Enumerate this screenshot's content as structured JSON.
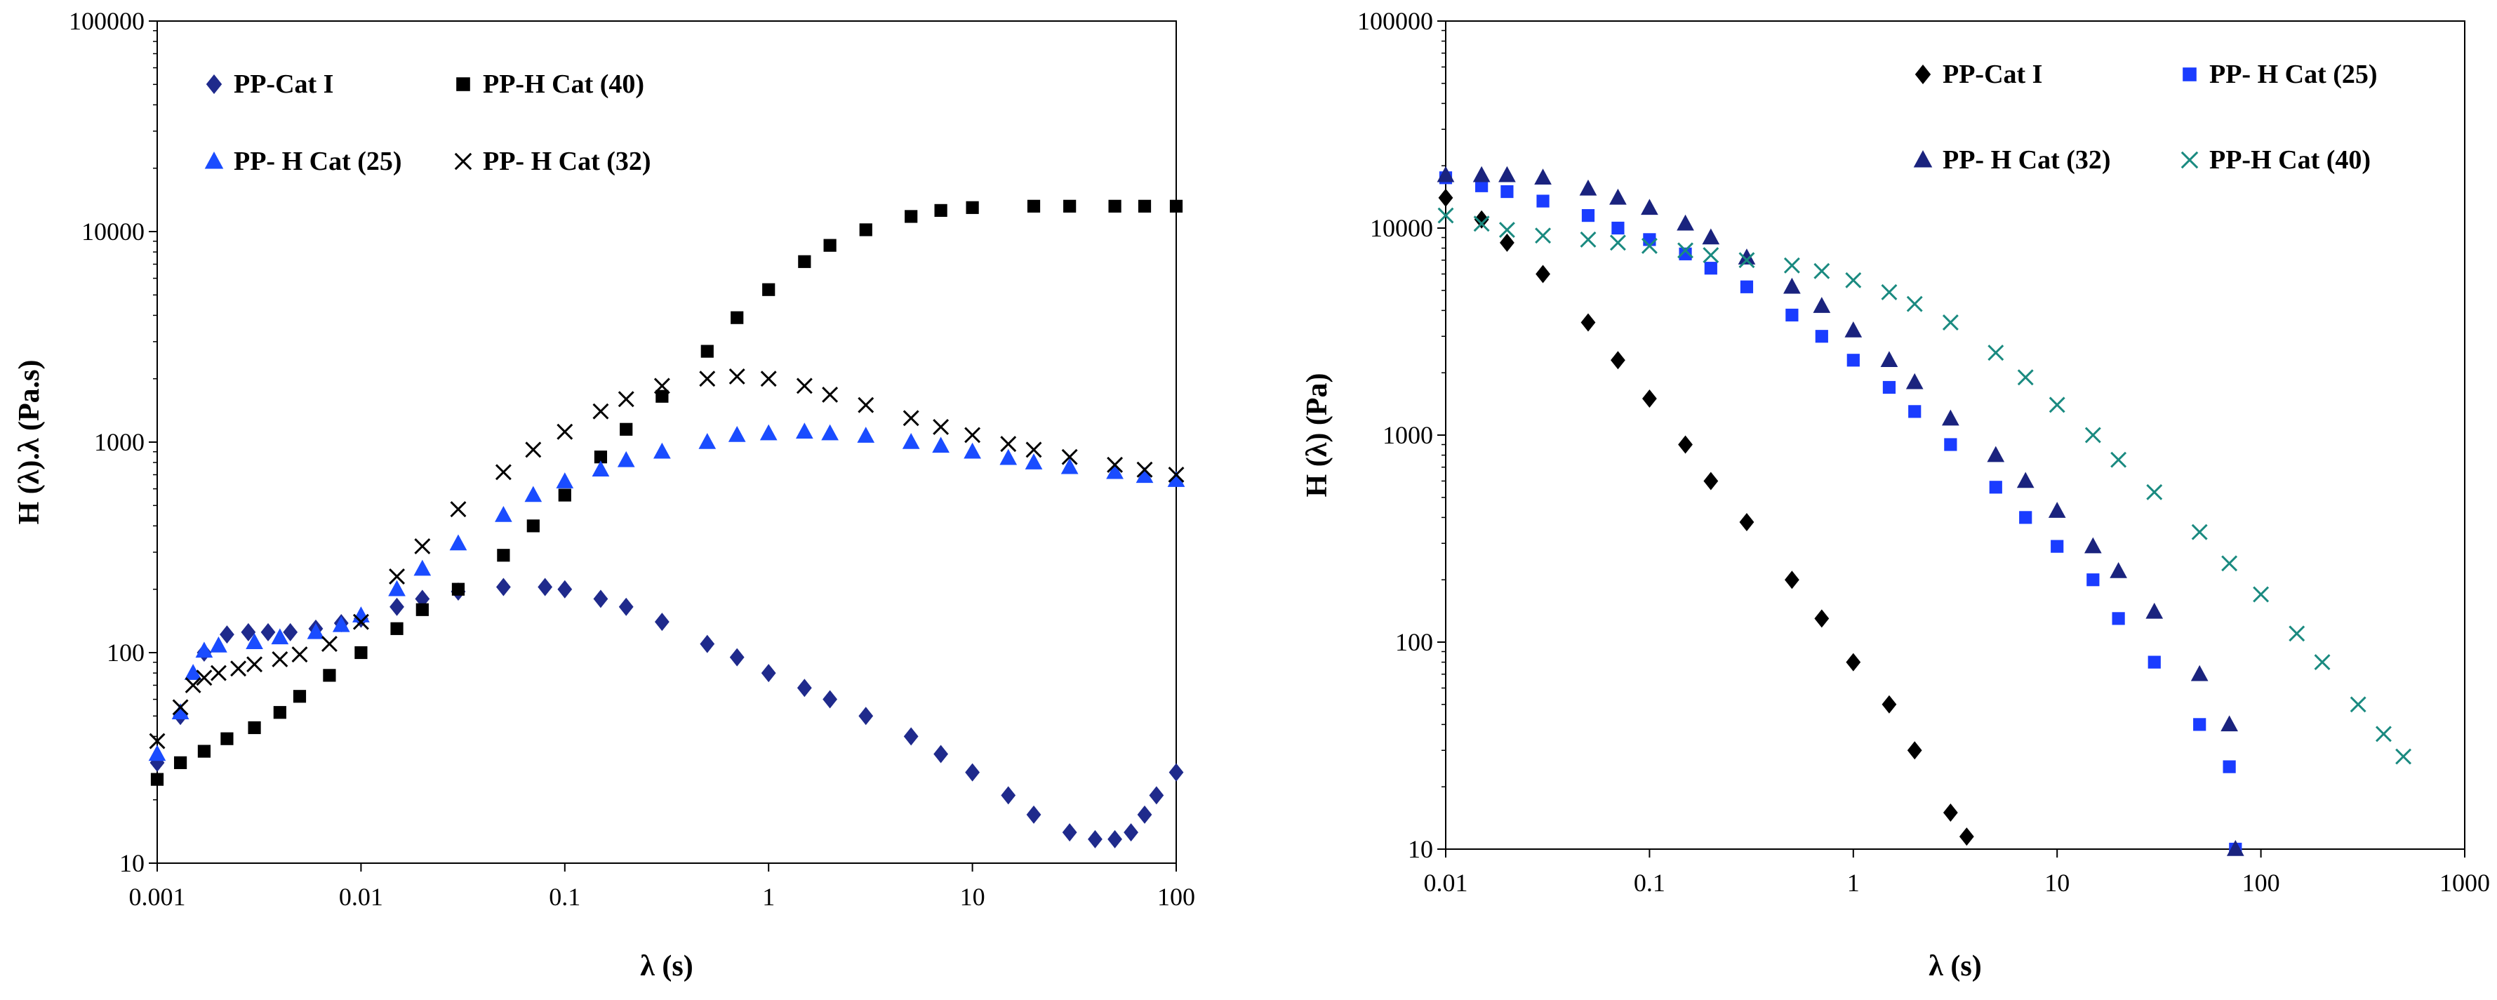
{
  "chart_data": [
    {
      "type": "scatter",
      "xscale": "log",
      "yscale": "log",
      "xlabel": "λ (s)",
      "ylabel": "H (λ).λ  (Pa.s)",
      "xlim": [
        0.001,
        100
      ],
      "ylim": [
        10,
        100000
      ],
      "xticks": [
        "0.001",
        "0.01",
        "0.1",
        "1",
        "10",
        "100"
      ],
      "yticks": [
        "10",
        "100",
        "1000",
        "10000",
        "100000"
      ],
      "legend_position": "top-left",
      "series": [
        {
          "name": "PP-Cat I",
          "marker": "diamond",
          "color": "#1f2a8c",
          "points": [
            [
              0.001,
              30
            ],
            [
              0.0013,
              50
            ],
            [
              0.0017,
              100
            ],
            [
              0.0022,
              122
            ],
            [
              0.0028,
              125
            ],
            [
              0.0035,
              125
            ],
            [
              0.0045,
              125
            ],
            [
              0.006,
              130
            ],
            [
              0.008,
              138
            ],
            [
              0.01,
              145
            ],
            [
              0.015,
              165
            ],
            [
              0.02,
              180
            ],
            [
              0.03,
              195
            ],
            [
              0.05,
              205
            ],
            [
              0.08,
              205
            ],
            [
              0.1,
              200
            ],
            [
              0.15,
              180
            ],
            [
              0.2,
              165
            ],
            [
              0.3,
              140
            ],
            [
              0.5,
              110
            ],
            [
              0.7,
              95
            ],
            [
              1,
              80
            ],
            [
              1.5,
              68
            ],
            [
              2,
              60
            ],
            [
              3,
              50
            ],
            [
              5,
              40
            ],
            [
              7,
              33
            ],
            [
              10,
              27
            ],
            [
              15,
              21
            ],
            [
              20,
              17
            ],
            [
              30,
              14
            ],
            [
              40,
              13
            ],
            [
              50,
              13
            ],
            [
              60,
              14
            ],
            [
              70,
              17
            ],
            [
              80,
              21
            ],
            [
              100,
              27
            ]
          ]
        },
        {
          "name": "PP-H Cat (40)",
          "marker": "square",
          "color": "#000000",
          "points": [
            [
              0.001,
              25
            ],
            [
              0.0013,
              30
            ],
            [
              0.0017,
              34
            ],
            [
              0.0022,
              39
            ],
            [
              0.003,
              44
            ],
            [
              0.004,
              52
            ],
            [
              0.005,
              62
            ],
            [
              0.007,
              78
            ],
            [
              0.01,
              100
            ],
            [
              0.015,
              130
            ],
            [
              0.02,
              160
            ],
            [
              0.03,
              200
            ],
            [
              0.05,
              290
            ],
            [
              0.07,
              400
            ],
            [
              0.1,
              560
            ],
            [
              0.15,
              850
            ],
            [
              0.2,
              1150
            ],
            [
              0.3,
              1650
            ],
            [
              0.5,
              2700
            ],
            [
              0.7,
              3900
            ],
            [
              1,
              5300
            ],
            [
              1.5,
              7200
            ],
            [
              2,
              8600
            ],
            [
              3,
              10200
            ],
            [
              5,
              11800
            ],
            [
              7,
              12600
            ],
            [
              10,
              13000
            ],
            [
              20,
              13200
            ],
            [
              30,
              13200
            ],
            [
              50,
              13200
            ],
            [
              70,
              13200
            ],
            [
              100,
              13200
            ]
          ]
        },
        {
          "name": "PP- H Cat (25)",
          "marker": "triangle",
          "color": "#1a4cff",
          "points": [
            [
              0.001,
              33
            ],
            [
              0.0013,
              52
            ],
            [
              0.0015,
              80
            ],
            [
              0.0017,
              102
            ],
            [
              0.002,
              108
            ],
            [
              0.003,
              112
            ],
            [
              0.004,
              118
            ],
            [
              0.006,
              125
            ],
            [
              0.008,
              135
            ],
            [
              0.01,
              150
            ],
            [
              0.015,
              200
            ],
            [
              0.02,
              250
            ],
            [
              0.03,
              330
            ],
            [
              0.05,
              450
            ],
            [
              0.07,
              560
            ],
            [
              0.1,
              650
            ],
            [
              0.15,
              740
            ],
            [
              0.2,
              820
            ],
            [
              0.3,
              900
            ],
            [
              0.5,
              1000
            ],
            [
              0.7,
              1080
            ],
            [
              1,
              1100
            ],
            [
              1.5,
              1120
            ],
            [
              2,
              1100
            ],
            [
              3,
              1070
            ],
            [
              5,
              1000
            ],
            [
              7,
              960
            ],
            [
              10,
              900
            ],
            [
              15,
              840
            ],
            [
              20,
              800
            ],
            [
              30,
              760
            ],
            [
              50,
              720
            ],
            [
              70,
              690
            ],
            [
              100,
              660
            ]
          ]
        },
        {
          "name": "PP- H Cat (32)",
          "marker": "x",
          "color": "#000000",
          "points": [
            [
              0.001,
              38
            ],
            [
              0.0013,
              55
            ],
            [
              0.0015,
              70
            ],
            [
              0.0017,
              76
            ],
            [
              0.002,
              80
            ],
            [
              0.0025,
              84
            ],
            [
              0.003,
              88
            ],
            [
              0.004,
              93
            ],
            [
              0.005,
              98
            ],
            [
              0.007,
              110
            ],
            [
              0.01,
              140
            ],
            [
              0.015,
              230
            ],
            [
              0.02,
              320
            ],
            [
              0.03,
              480
            ],
            [
              0.05,
              720
            ],
            [
              0.07,
              920
            ],
            [
              0.1,
              1120
            ],
            [
              0.15,
              1400
            ],
            [
              0.2,
              1600
            ],
            [
              0.3,
              1850
            ],
            [
              0.5,
              2000
            ],
            [
              0.7,
              2050
            ],
            [
              1,
              2000
            ],
            [
              1.5,
              1850
            ],
            [
              2,
              1680
            ],
            [
              3,
              1500
            ],
            [
              5,
              1300
            ],
            [
              7,
              1180
            ],
            [
              10,
              1080
            ],
            [
              15,
              980
            ],
            [
              20,
              920
            ],
            [
              30,
              850
            ],
            [
              50,
              780
            ],
            [
              70,
              740
            ],
            [
              100,
              700
            ]
          ]
        }
      ]
    },
    {
      "type": "scatter",
      "xscale": "log",
      "yscale": "log",
      "xlabel": "λ (s)",
      "ylabel": "H (λ)  (Pa)",
      "xlim": [
        0.01,
        1000
      ],
      "ylim": [
        10,
        100000
      ],
      "xticks": [
        "0.01",
        "0.1",
        "1",
        "10",
        "100",
        "1000"
      ],
      "yticks": [
        "10",
        "100",
        "1000",
        "10000",
        "100000"
      ],
      "legend_position": "top-right",
      "series": [
        {
          "name": "PP-Cat I",
          "marker": "diamond",
          "color": "#000000",
          "points": [
            [
              0.01,
              14000
            ],
            [
              0.015,
              11000
            ],
            [
              0.02,
              8500
            ],
            [
              0.03,
              6000
            ],
            [
              0.05,
              3500
            ],
            [
              0.07,
              2300
            ],
            [
              0.1,
              1500
            ],
            [
              0.15,
              900
            ],
            [
              0.2,
              600
            ],
            [
              0.3,
              380
            ],
            [
              0.5,
              200
            ],
            [
              0.7,
              130
            ],
            [
              1,
              80
            ],
            [
              1.5,
              50
            ],
            [
              2,
              30
            ],
            [
              3,
              15
            ],
            [
              3.6,
              11.5
            ]
          ]
        },
        {
          "name": "PP- H Cat (25)",
          "marker": "square",
          "color": "#1a3cff",
          "points": [
            [
              0.01,
              17500
            ],
            [
              0.015,
              16000
            ],
            [
              0.02,
              15000
            ],
            [
              0.03,
              13500
            ],
            [
              0.05,
              11500
            ],
            [
              0.07,
              10000
            ],
            [
              0.1,
              8800
            ],
            [
              0.15,
              7500
            ],
            [
              0.2,
              6400
            ],
            [
              0.3,
              5200
            ],
            [
              0.5,
              3800
            ],
            [
              0.7,
              3000
            ],
            [
              1,
              2300
            ],
            [
              1.5,
              1700
            ],
            [
              2,
              1300
            ],
            [
              3,
              900
            ],
            [
              5,
              560
            ],
            [
              7,
              400
            ],
            [
              10,
              290
            ],
            [
              15,
              200
            ],
            [
              20,
              130
            ],
            [
              30,
              80
            ],
            [
              50,
              40
            ],
            [
              70,
              25
            ],
            [
              75,
              10
            ]
          ]
        },
        {
          "name": "PP- H Cat (32)",
          "marker": "triangle",
          "color": "#1a237e",
          "points": [
            [
              0.01,
              18000
            ],
            [
              0.015,
              18000
            ],
            [
              0.02,
              18000
            ],
            [
              0.03,
              17500
            ],
            [
              0.05,
              15500
            ],
            [
              0.07,
              14000
            ],
            [
              0.1,
              12500
            ],
            [
              0.15,
              10500
            ],
            [
              0.2,
              9000
            ],
            [
              0.3,
              7200
            ],
            [
              0.5,
              5200
            ],
            [
              0.7,
              4200
            ],
            [
              1,
              3200
            ],
            [
              1.5,
              2300
            ],
            [
              2,
              1800
            ],
            [
              3,
              1200
            ],
            [
              5,
              800
            ],
            [
              7,
              600
            ],
            [
              10,
              430
            ],
            [
              15,
              290
            ],
            [
              20,
              220
            ],
            [
              30,
              140
            ],
            [
              50,
              70
            ],
            [
              70,
              40
            ],
            [
              75,
              10
            ]
          ]
        },
        {
          "name": "PP-H Cat (40)",
          "marker": "x",
          "color": "#1a8a80",
          "points": [
            [
              0.01,
              11500
            ],
            [
              0.015,
              10500
            ],
            [
              0.02,
              9800
            ],
            [
              0.03,
              9200
            ],
            [
              0.05,
              8800
            ],
            [
              0.07,
              8500
            ],
            [
              0.1,
              8200
            ],
            [
              0.15,
              7800
            ],
            [
              0.2,
              7400
            ],
            [
              0.3,
              7000
            ],
            [
              0.5,
              6600
            ],
            [
              0.7,
              6200
            ],
            [
              1,
              5600
            ],
            [
              1.5,
              4900
            ],
            [
              2,
              4300
            ],
            [
              3,
              3500
            ],
            [
              5,
              2500
            ],
            [
              7,
              1900
            ],
            [
              10,
              1400
            ],
            [
              15,
              1000
            ],
            [
              20,
              760
            ],
            [
              30,
              530
            ],
            [
              50,
              340
            ],
            [
              70,
              240
            ],
            [
              100,
              170
            ],
            [
              150,
              110
            ],
            [
              200,
              80
            ],
            [
              300,
              50
            ],
            [
              400,
              36
            ],
            [
              500,
              28
            ]
          ]
        }
      ]
    }
  ]
}
